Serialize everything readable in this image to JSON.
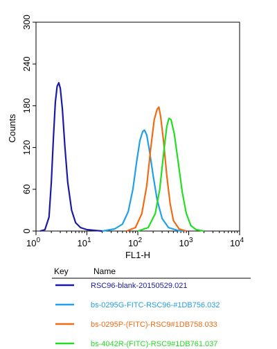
{
  "chart_data": {
    "type": "line",
    "xlabel": "FL1-H",
    "ylabel": "Counts",
    "x_scale": "log",
    "xlim": [
      1,
      10000
    ],
    "ylim": [
      0,
      300
    ],
    "x_ticks": [
      {
        "value": 1,
        "base": "10",
        "exp": "0"
      },
      {
        "value": 10,
        "base": "10",
        "exp": "1"
      },
      {
        "value": 100,
        "base": "10",
        "exp": "2"
      },
      {
        "value": 1000,
        "base": "10",
        "exp": "3"
      },
      {
        "value": 10000,
        "base": "10",
        "exp": "4"
      }
    ],
    "y_ticks": [
      "0",
      "60",
      "120",
      "180",
      "240",
      "300"
    ],
    "legend": {
      "key_header": "Key",
      "name_header": "Name",
      "placement": "bottom"
    },
    "series": [
      {
        "name": "RSC96-blank-20150529.021",
        "color": "#1a1aa6",
        "points": [
          [
            1.2,
            0
          ],
          [
            1.5,
            2
          ],
          [
            1.8,
            20
          ],
          [
            2.0,
            70
          ],
          [
            2.2,
            135
          ],
          [
            2.4,
            185
          ],
          [
            2.6,
            208
          ],
          [
            2.8,
            213
          ],
          [
            3.0,
            205
          ],
          [
            3.3,
            175
          ],
          [
            3.7,
            120
          ],
          [
            4.2,
            70
          ],
          [
            5.0,
            30
          ],
          [
            6.0,
            12
          ],
          [
            7.5,
            5
          ],
          [
            10,
            2
          ],
          [
            14,
            1
          ],
          [
            20,
            0
          ]
        ]
      },
      {
        "name": "bs-0295G-FITC-RSC96-#1DB756.032",
        "color": "#1fa0e8",
        "points": [
          [
            20,
            0
          ],
          [
            35,
            3
          ],
          [
            50,
            10
          ],
          [
            65,
            28
          ],
          [
            80,
            60
          ],
          [
            95,
            100
          ],
          [
            110,
            130
          ],
          [
            125,
            143
          ],
          [
            135,
            145
          ],
          [
            150,
            138
          ],
          [
            170,
            115
          ],
          [
            200,
            80
          ],
          [
            240,
            45
          ],
          [
            300,
            18
          ],
          [
            400,
            5
          ],
          [
            600,
            1
          ],
          [
            800,
            0
          ]
        ]
      },
      {
        "name": "bs-0295P-(FITC)-RSC9#1DB758.033",
        "color": "#f26a12",
        "points": [
          [
            60,
            0
          ],
          [
            90,
            5
          ],
          [
            120,
            25
          ],
          [
            150,
            65
          ],
          [
            180,
            120
          ],
          [
            210,
            160
          ],
          [
            240,
            175
          ],
          [
            260,
            178
          ],
          [
            280,
            165
          ],
          [
            320,
            130
          ],
          [
            370,
            80
          ],
          [
            430,
            40
          ],
          [
            500,
            15
          ],
          [
            650,
            3
          ],
          [
            900,
            0
          ]
        ]
      },
      {
        "name": "bs-4042R-(FITC)-RSC9#1DB761.037",
        "color": "#22dd22",
        "points": [
          [
            100,
            0
          ],
          [
            160,
            5
          ],
          [
            220,
            25
          ],
          [
            270,
            60
          ],
          [
            320,
            110
          ],
          [
            370,
            150
          ],
          [
            410,
            162
          ],
          [
            450,
            160
          ],
          [
            520,
            140
          ],
          [
            620,
            100
          ],
          [
            750,
            55
          ],
          [
            900,
            25
          ],
          [
            1100,
            8
          ],
          [
            1400,
            2
          ],
          [
            2000,
            0
          ]
        ]
      }
    ]
  }
}
